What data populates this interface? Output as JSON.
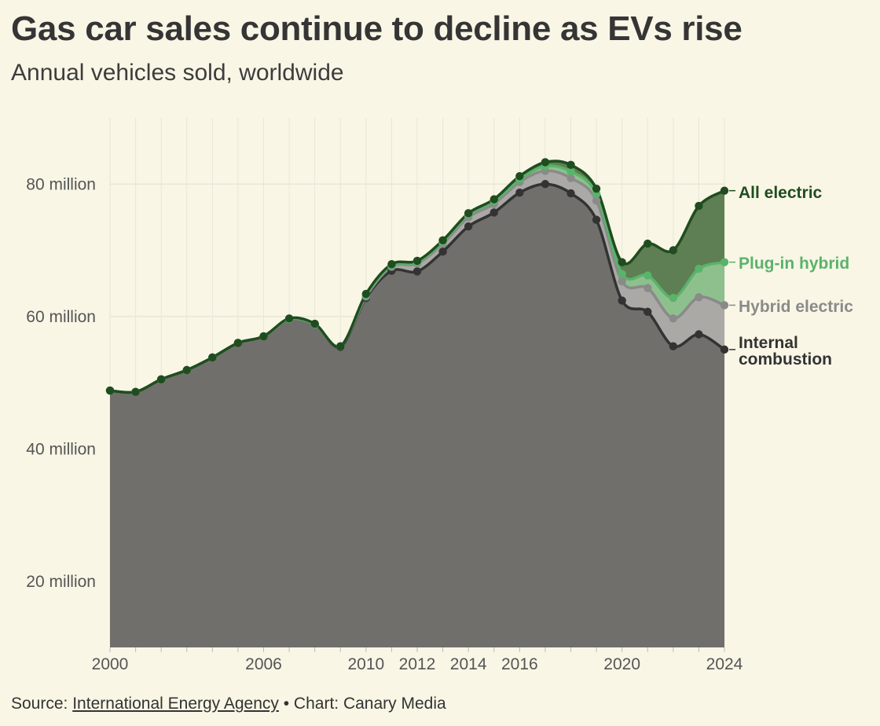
{
  "title": "Gas car sales continue to decline as EVs rise",
  "subtitle": "Annual vehicles sold, worldwide",
  "source": {
    "prefix": "Source: ",
    "link_text": "International Energy Agency",
    "suffix": " • Chart: Canary Media"
  },
  "colors": {
    "background": "#f9f6e6",
    "internal_combustion": "#333333",
    "internal_combustion_fill": "#716f6b",
    "hybrid_electric": "#8a8a8a",
    "hybrid_electric_fill": "#aaa9a6",
    "plug_in_hybrid": "#5ab36a",
    "plug_in_hybrid_fill": "#8ec08e",
    "all_electric": "#1f4d1f",
    "all_electric_fill": "#5e7f53",
    "grid": "#e9e6da"
  },
  "chart_data": {
    "type": "area",
    "stacked": true,
    "x": [
      2000,
      2001,
      2002,
      2003,
      2004,
      2005,
      2006,
      2007,
      2008,
      2009,
      2010,
      2011,
      2012,
      2013,
      2014,
      2015,
      2016,
      2017,
      2018,
      2019,
      2020,
      2021,
      2022,
      2023,
      2024
    ],
    "x_tick_labels": [
      "2000",
      "2006",
      "2010",
      "2012",
      "2014",
      "2016",
      "2020",
      "2024"
    ],
    "x_tick_values": [
      2000,
      2006,
      2010,
      2012,
      2014,
      2016,
      2020,
      2024
    ],
    "xlim": [
      2000,
      2024
    ],
    "ylim": [
      10000000,
      90000000
    ],
    "y_ticks": [
      {
        "value": 20000000,
        "label": "20 million"
      },
      {
        "value": 40000000,
        "label": "40 million"
      },
      {
        "value": 60000000,
        "label": "60 million"
      },
      {
        "value": 80000000,
        "label": "80 million"
      }
    ],
    "grid": true,
    "series": [
      {
        "name": "Internal combustion",
        "label_lines": [
          "Internal",
          "combustion"
        ],
        "cumulative": [
          48800000,
          48600000,
          50500000,
          51900000,
          53800000,
          56000000,
          57000000,
          59600000,
          58800000,
          55400000,
          62800000,
          66900000,
          66800000,
          69800000,
          73600000,
          75700000,
          78700000,
          80000000,
          78600000,
          74600000,
          62400000,
          60700000,
          55500000,
          57300000,
          55000000
        ]
      },
      {
        "name": "Hybrid electric",
        "cumulative": [
          48800000,
          48600000,
          50500000,
          51900000,
          53800000,
          56000000,
          57000000,
          59600000,
          58800000,
          55500000,
          63000000,
          67500000,
          68000000,
          71000000,
          75000000,
          77000000,
          80300000,
          82000000,
          80900000,
          77500000,
          65300000,
          64300000,
          59700000,
          62900000,
          61700000
        ]
      },
      {
        "name": "Plug-in hybrid",
        "cumulative": [
          48800000,
          48600000,
          50500000,
          51900000,
          53800000,
          56000000,
          57000000,
          59600000,
          58800000,
          55500000,
          63200000,
          67700000,
          68200000,
          71300000,
          75400000,
          77400000,
          80700000,
          82700000,
          81900000,
          78500000,
          66400000,
          66200000,
          62800000,
          67200000,
          68200000
        ]
      },
      {
        "name": "All electric",
        "cumulative": [
          48800000,
          48600000,
          50500000,
          51900000,
          53800000,
          56000000,
          57000000,
          59700000,
          58900000,
          55500000,
          63400000,
          67900000,
          68400000,
          71500000,
          75600000,
          77700000,
          81200000,
          83300000,
          82900000,
          79300000,
          68200000,
          71000000,
          70000000,
          76700000,
          79000000
        ]
      }
    ]
  }
}
